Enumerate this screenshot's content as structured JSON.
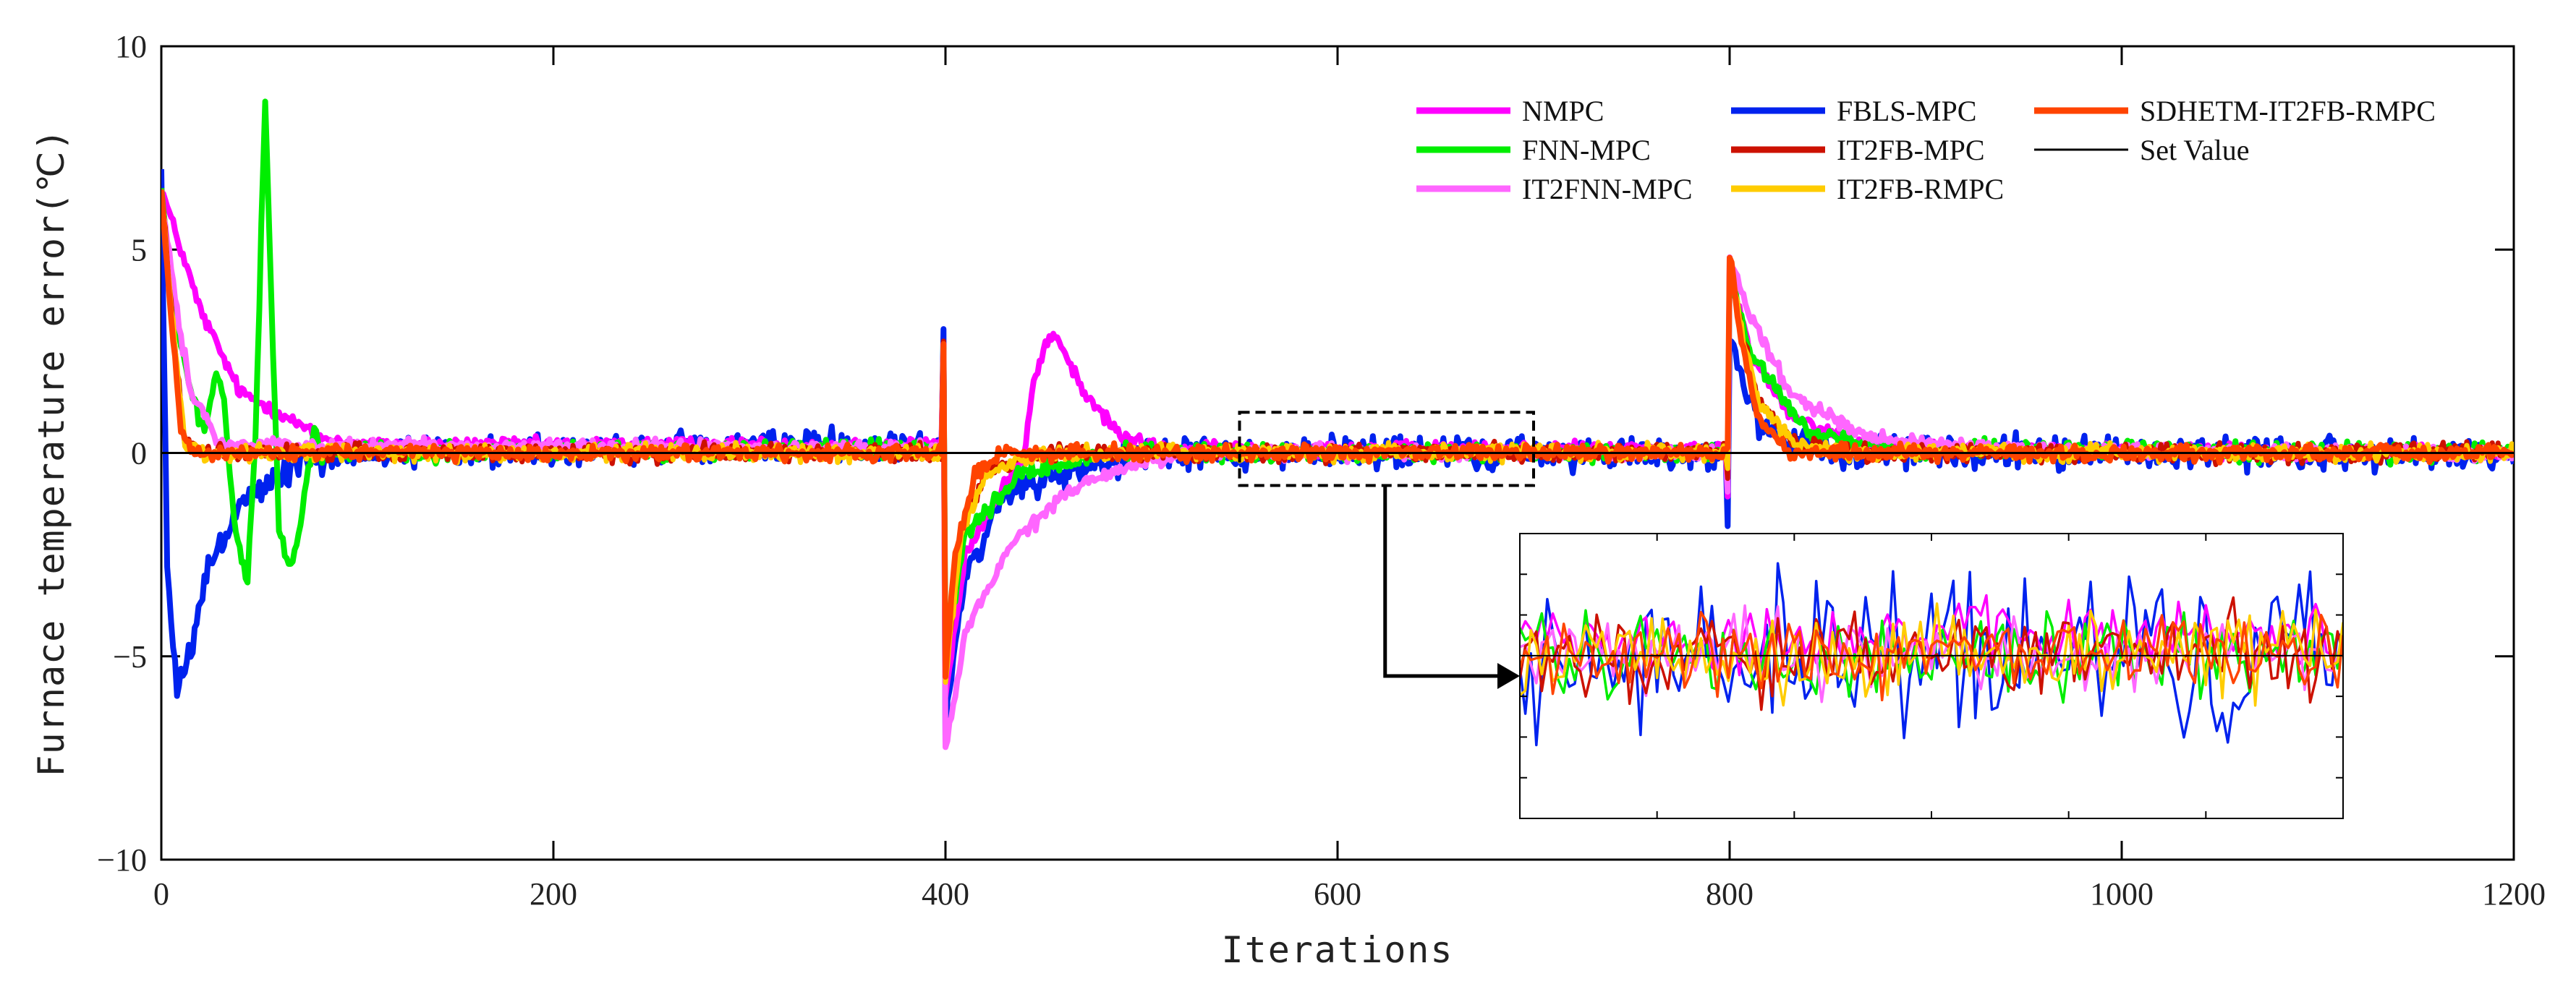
{
  "chart_data": {
    "type": "line",
    "title": "",
    "xlabel": "Iterations",
    "ylabel": "Furnace temperature error(℃)",
    "xlim": [
      0,
      1200
    ],
    "ylim": [
      -10,
      10
    ],
    "xticks": [
      0,
      200,
      400,
      600,
      800,
      1000,
      1200
    ],
    "yticks": [
      -10,
      -5,
      0,
      5,
      10
    ],
    "xtick_labels": [
      "0",
      "200",
      "400",
      "600",
      "800",
      "1000",
      "1200"
    ],
    "ytick_labels": [
      "−10",
      "−5",
      "0",
      "5",
      "10"
    ],
    "grid": false,
    "legend_position": "top-right",
    "set_value": 0,
    "series": [
      {
        "name": "NMPC",
        "color": "#ff00ff",
        "anchors": [
          [
            0,
            6.5
          ],
          [
            20,
            3.5
          ],
          [
            40,
            1.5
          ],
          [
            60,
            1.0
          ],
          [
            80,
            0.4
          ],
          [
            100,
            0.2
          ],
          [
            398,
            0.2
          ],
          [
            399,
            2.8
          ],
          [
            400,
            -6.0
          ],
          [
            410,
            -2.5
          ],
          [
            440,
            0.0
          ],
          [
            445,
            1.8
          ],
          [
            452,
            2.8
          ],
          [
            458,
            2.8
          ],
          [
            470,
            1.5
          ],
          [
            490,
            0.4
          ],
          [
            510,
            0.1
          ],
          [
            798,
            0.1
          ],
          [
            799,
            -1.2
          ],
          [
            800,
            4.5
          ],
          [
            810,
            2.5
          ],
          [
            830,
            1.0
          ],
          [
            860,
            0.3
          ],
          [
            900,
            0.1
          ],
          [
            1200,
            0.0
          ]
        ],
        "noise": 0.12
      },
      {
        "name": "FNN-MPC",
        "color": "#00ee00",
        "anchors": [
          [
            0,
            6.5
          ],
          [
            6,
            3.5
          ],
          [
            15,
            1.5
          ],
          [
            22,
            0.5
          ],
          [
            28,
            2.0
          ],
          [
            32,
            1.2
          ],
          [
            38,
            -2.0
          ],
          [
            44,
            -3.2
          ],
          [
            48,
            0.5
          ],
          [
            53,
            8.8
          ],
          [
            56,
            4.0
          ],
          [
            60,
            -2.0
          ],
          [
            66,
            -2.8
          ],
          [
            72,
            -1.5
          ],
          [
            78,
            0.6
          ],
          [
            82,
            0.0
          ],
          [
            398,
            0.1
          ],
          [
            399,
            2.5
          ],
          [
            400,
            -5.0
          ],
          [
            410,
            -2.0
          ],
          [
            440,
            -0.5
          ],
          [
            480,
            0.0
          ],
          [
            798,
            0.0
          ],
          [
            799,
            -0.8
          ],
          [
            800,
            4.3
          ],
          [
            810,
            2.5
          ],
          [
            840,
            0.5
          ],
          [
            880,
            0.1
          ],
          [
            1200,
            0.0
          ]
        ],
        "noise": 0.15
      },
      {
        "name": "IT2FNN-MPC",
        "color": "#ff66ff",
        "anchors": [
          [
            0,
            6.2
          ],
          [
            8,
            3.5
          ],
          [
            15,
            1.5
          ],
          [
            30,
            0.2
          ],
          [
            398,
            0.1
          ],
          [
            399,
            2.6
          ],
          [
            400,
            -7.3
          ],
          [
            410,
            -4.5
          ],
          [
            430,
            -2.5
          ],
          [
            460,
            -1.0
          ],
          [
            500,
            -0.2
          ],
          [
            530,
            0.0
          ],
          [
            798,
            0.0
          ],
          [
            799,
            -0.8
          ],
          [
            800,
            4.8
          ],
          [
            810,
            3.5
          ],
          [
            830,
            1.5
          ],
          [
            870,
            0.4
          ],
          [
            920,
            0.1
          ],
          [
            1200,
            0.0
          ]
        ],
        "noise": 0.12
      },
      {
        "name": "FBLS-MPC",
        "color": "#0022ee",
        "anchors": [
          [
            0,
            7.0
          ],
          [
            3,
            -3.0
          ],
          [
            8,
            -5.8
          ],
          [
            15,
            -5.0
          ],
          [
            25,
            -2.5
          ],
          [
            45,
            -1.0
          ],
          [
            70,
            -0.3
          ],
          [
            100,
            0.0
          ],
          [
            398,
            0.2
          ],
          [
            399,
            2.8
          ],
          [
            400,
            -6.8
          ],
          [
            410,
            -3.0
          ],
          [
            430,
            -1.0
          ],
          [
            470,
            -0.3
          ],
          [
            510,
            0.0
          ],
          [
            798,
            0.0
          ],
          [
            799,
            -1.5
          ],
          [
            800,
            3.0
          ],
          [
            808,
            1.5
          ],
          [
            820,
            0.4
          ],
          [
            850,
            0.0
          ],
          [
            1200,
            0.0
          ]
        ],
        "noise": 0.28
      },
      {
        "name": "IT2FB-MPC",
        "color": "#cc1100",
        "anchors": [
          [
            0,
            6.5
          ],
          [
            6,
            3.0
          ],
          [
            12,
            0.3
          ],
          [
            20,
            0.0
          ],
          [
            398,
            0.0
          ],
          [
            399,
            2.6
          ],
          [
            400,
            -5.5
          ],
          [
            408,
            -2.0
          ],
          [
            420,
            -0.5
          ],
          [
            450,
            0.0
          ],
          [
            798,
            0.0
          ],
          [
            799,
            -0.5
          ],
          [
            800,
            4.7
          ],
          [
            806,
            3.0
          ],
          [
            815,
            1.2
          ],
          [
            835,
            0.2
          ],
          [
            860,
            0.0
          ],
          [
            1200,
            0.0
          ]
        ],
        "noise": 0.15
      },
      {
        "name": "IT2FB-RMPC",
        "color": "#ffcc00",
        "anchors": [
          [
            0,
            6.5
          ],
          [
            6,
            3.0
          ],
          [
            12,
            0.3
          ],
          [
            20,
            0.0
          ],
          [
            398,
            0.0
          ],
          [
            399,
            2.6
          ],
          [
            400,
            -5.5
          ],
          [
            408,
            -2.0
          ],
          [
            420,
            -0.5
          ],
          [
            450,
            0.0
          ],
          [
            798,
            0.0
          ],
          [
            799,
            -0.5
          ],
          [
            800,
            4.7
          ],
          [
            806,
            3.0
          ],
          [
            815,
            1.2
          ],
          [
            835,
            0.2
          ],
          [
            860,
            0.0
          ],
          [
            1200,
            0.0
          ]
        ],
        "noise": 0.15
      },
      {
        "name": "SDHETM-IT2FB-RMPC",
        "color": "#ff4400",
        "anchors": [
          [
            0,
            6.5
          ],
          [
            4,
            4.0
          ],
          [
            10,
            0.5
          ],
          [
            15,
            0.1
          ],
          [
            20,
            0.0
          ],
          [
            398,
            0.0
          ],
          [
            399,
            2.7
          ],
          [
            400,
            -5.5
          ],
          [
            405,
            -2.5
          ],
          [
            415,
            -0.5
          ],
          [
            430,
            0.0
          ],
          [
            798,
            0.0
          ],
          [
            799,
            0.0
          ],
          [
            800,
            4.9
          ],
          [
            805,
            3.0
          ],
          [
            815,
            0.8
          ],
          [
            830,
            0.0
          ],
          [
            1200,
            0.0
          ]
        ],
        "noise": 0.13
      },
      {
        "name": "Set Value",
        "color": "#000000",
        "anchors": [
          [
            0,
            0
          ],
          [
            1200,
            0
          ]
        ],
        "noise": 0
      }
    ],
    "annotations": {
      "zoom_region_x": [
        550,
        700
      ],
      "zoom_region_y": [
        -0.8,
        1.0
      ],
      "inset_x": [
        550,
        700
      ],
      "inset_y": [
        -0.8,
        0.6
      ]
    }
  }
}
